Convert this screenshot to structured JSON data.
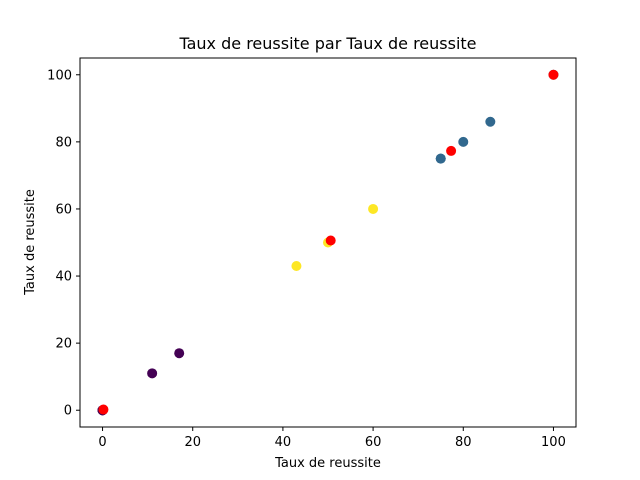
{
  "chart_data": {
    "type": "scatter",
    "title": "Taux de reussite par Taux de reussite",
    "xlabel": "Taux de reussite",
    "ylabel": "Taux de reussite",
    "xlim": [
      -5,
      105
    ],
    "ylim": [
      -5,
      105
    ],
    "xticks": [
      0,
      20,
      40,
      60,
      80,
      100
    ],
    "yticks": [
      0,
      20,
      40,
      60,
      80,
      100
    ],
    "grid": false,
    "legend": "none",
    "colors": {
      "purple": "#440154",
      "blue": "#31688e",
      "yellow": "#fde725",
      "red": "#ff0000"
    },
    "points": [
      {
        "x": 0,
        "y": 0,
        "color": "purple"
      },
      {
        "x": 0,
        "y": 0,
        "color": "purple"
      },
      {
        "x": 0,
        "y": 0,
        "color": "purple"
      },
      {
        "x": 0,
        "y": 0,
        "color": "purple"
      },
      {
        "x": 11,
        "y": 11,
        "color": "purple"
      },
      {
        "x": 17,
        "y": 17,
        "color": "purple"
      },
      {
        "x": 43,
        "y": 43,
        "color": "yellow"
      },
      {
        "x": 50,
        "y": 50,
        "color": "yellow"
      },
      {
        "x": 60,
        "y": 60,
        "color": "yellow"
      },
      {
        "x": 75,
        "y": 75,
        "color": "blue"
      },
      {
        "x": 75,
        "y": 75,
        "color": "blue"
      },
      {
        "x": 80,
        "y": 80,
        "color": "blue"
      },
      {
        "x": 86,
        "y": 86,
        "color": "blue"
      },
      {
        "x": 100,
        "y": 100,
        "color": "blue"
      },
      {
        "x": 0.2,
        "y": 0.2,
        "color": "red"
      },
      {
        "x": 50.6,
        "y": 50.6,
        "color": "red"
      },
      {
        "x": 77.3,
        "y": 77.3,
        "color": "red"
      },
      {
        "x": 100,
        "y": 100,
        "color": "red"
      }
    ]
  }
}
